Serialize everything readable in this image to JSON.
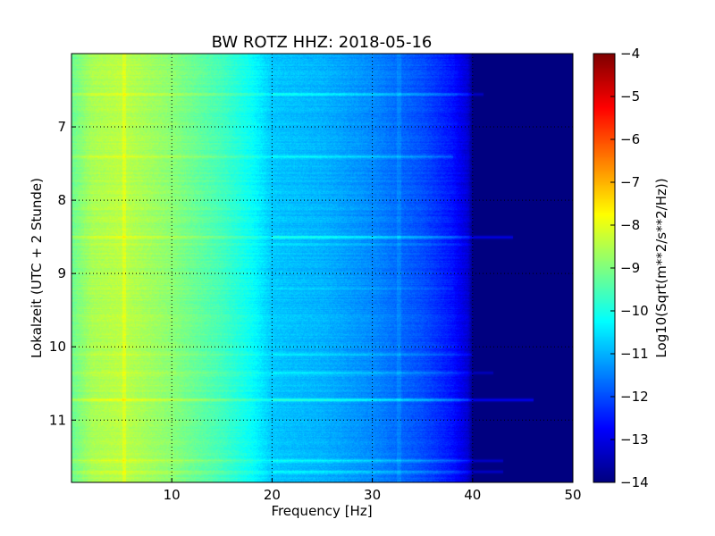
{
  "chart_data": {
    "type": "heatmap",
    "title": "BW ROTZ HHZ: 2018-05-16",
    "xlabel": "Frequency [Hz]",
    "ylabel": "Lokalzeit (UTC + 2 Stunde)",
    "xlim": [
      0,
      50
    ],
    "ylim": [
      11.85,
      6.0
    ],
    "x_ticks": [
      10,
      20,
      30,
      40,
      50
    ],
    "y_ticks": [
      7,
      8,
      9,
      10,
      11
    ],
    "grid": true,
    "colorbar": {
      "label": "Log10(Sqrt(m**2/s**2/Hz))",
      "range": [
        -14,
        -4
      ],
      "ticks": [
        -14,
        -13,
        -12,
        -11,
        -10,
        -9,
        -8,
        -7,
        -6,
        -5,
        -4
      ],
      "colormap": "jet"
    },
    "frequency_profile": {
      "x": [
        0,
        2,
        5,
        10,
        15,
        18,
        20,
        25,
        30,
        35,
        38,
        39.5,
        40,
        50
      ],
      "log_amplitude": [
        -9.2,
        -8.6,
        -8.4,
        -8.9,
        -9.6,
        -10.2,
        -10.8,
        -11.0,
        -11.4,
        -12.0,
        -12.6,
        -13.2,
        -14.0,
        -14.0
      ]
    },
    "strong_bands": [
      {
        "time": 6.55,
        "boost": 0.7,
        "max_freq": 41
      },
      {
        "time": 7.4,
        "boost": 0.6,
        "max_freq": 38
      },
      {
        "time": 8.5,
        "boost": 1.0,
        "max_freq": 44
      },
      {
        "time": 8.6,
        "boost": 0.4,
        "max_freq": 40
      },
      {
        "time": 9.2,
        "boost": 0.3,
        "max_freq": 38
      },
      {
        "time": 10.1,
        "boost": 0.5,
        "max_freq": 40
      },
      {
        "time": 10.35,
        "boost": 0.6,
        "max_freq": 42
      },
      {
        "time": 10.72,
        "boost": 1.1,
        "max_freq": 46
      },
      {
        "time": 11.55,
        "boost": 0.7,
        "max_freq": 43
      },
      {
        "time": 11.7,
        "boost": 0.7,
        "max_freq": 43
      }
    ]
  }
}
